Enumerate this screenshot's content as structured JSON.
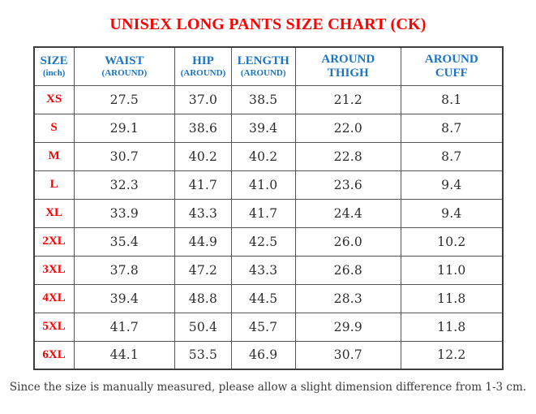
{
  "title": "UNISEX LONG PANTS SIZE CHART (CK)",
  "footer_note": "Since the size is manually measured, please allow a slight dimension difference from 1-3 cm.",
  "colors": {
    "title_red": "#fe0000",
    "size_label_red": "#fe0000",
    "header_blue": "#1b75c4",
    "value_text": "#2d2d2d",
    "border_gray": "#565656",
    "outer_border": "#3d3d3d",
    "background": "#ffffff"
  },
  "table": {
    "columns": [
      {
        "key": "size",
        "title": "SIZE",
        "subtitle": "(inch)"
      },
      {
        "key": "waist",
        "title": "WAIST",
        "subtitle": "(AROUND)"
      },
      {
        "key": "hip",
        "title": "HIP",
        "subtitle": "(AROUND)"
      },
      {
        "key": "length",
        "title": "LENGTH",
        "subtitle": "(AROUND)"
      },
      {
        "key": "around-thigh",
        "title": "AROUND",
        "subtitle": "THIGH"
      },
      {
        "key": "around-cuff",
        "title": "AROUND",
        "subtitle": "CUFF"
      }
    ],
    "rows": [
      {
        "size": "XS",
        "values": [
          "27.5",
          "37.0",
          "38.5",
          "21.2",
          "8.1"
        ]
      },
      {
        "size": "S",
        "values": [
          "29.1",
          "38.6",
          "39.4",
          "22.0",
          "8.7"
        ]
      },
      {
        "size": "M",
        "values": [
          "30.7",
          "40.2",
          "40.2",
          "22.8",
          "8.7"
        ]
      },
      {
        "size": "L",
        "values": [
          "32.3",
          "41.7",
          "41.0",
          "23.6",
          "9.4"
        ]
      },
      {
        "size": "XL",
        "values": [
          "33.9",
          "43.3",
          "41.7",
          "24.4",
          "9.4"
        ]
      },
      {
        "size": "2XL",
        "values": [
          "35.4",
          "44.9",
          "42.5",
          "26.0",
          "10.2"
        ]
      },
      {
        "size": "3XL",
        "values": [
          "37.8",
          "47.2",
          "43.3",
          "26.8",
          "11.0"
        ]
      },
      {
        "size": "4XL",
        "values": [
          "39.4",
          "48.8",
          "44.5",
          "28.3",
          "11.8"
        ]
      },
      {
        "size": "5XL",
        "values": [
          "41.7",
          "50.4",
          "45.7",
          "29.9",
          "11.8"
        ]
      },
      {
        "size": "6XL",
        "values": [
          "44.1",
          "53.5",
          "46.9",
          "30.7",
          "12.2"
        ]
      }
    ]
  }
}
